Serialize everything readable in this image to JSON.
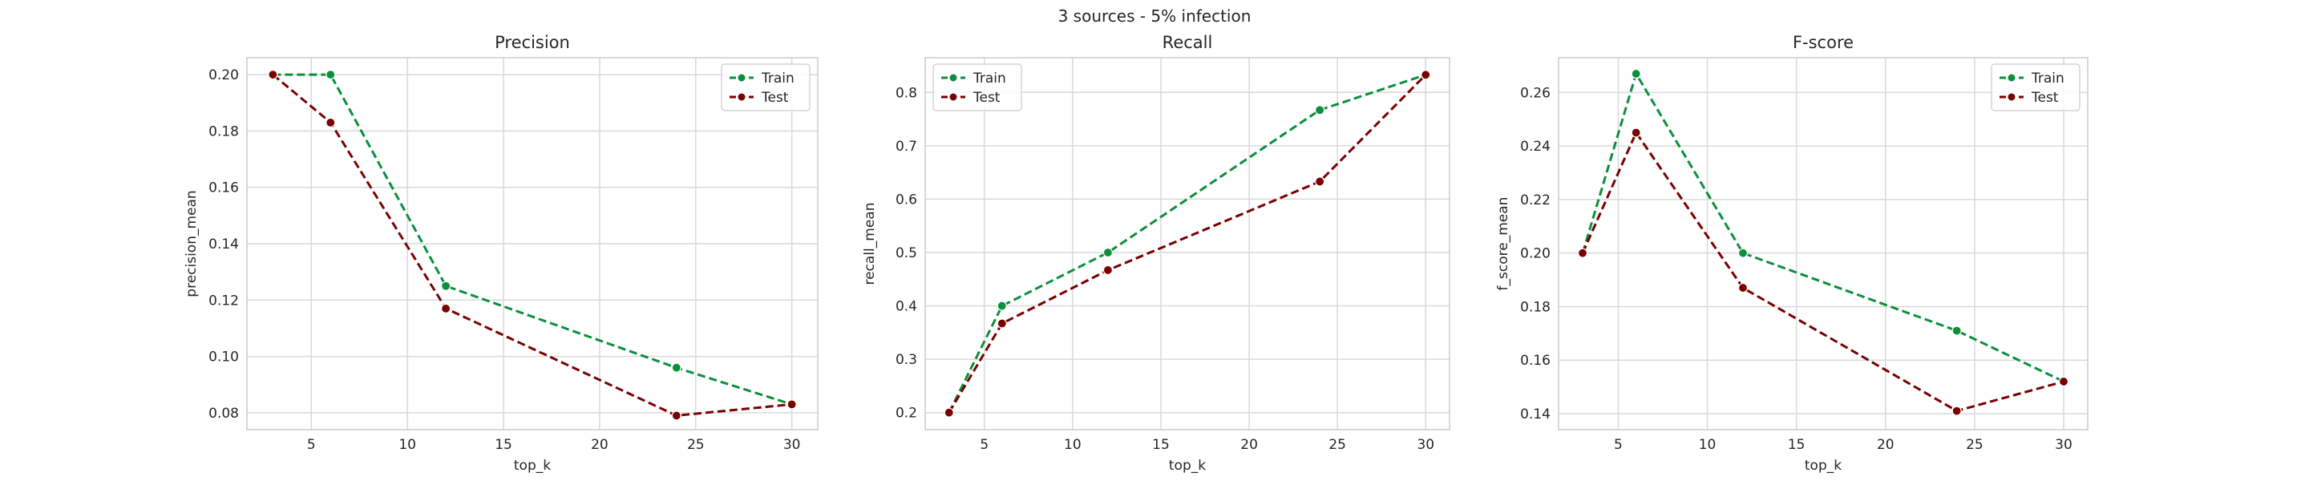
{
  "suptitle": "3 sources - 5% infection",
  "colors": {
    "train": "#0a8f3c",
    "test": "#7a0000",
    "grid": "#d9d9d9",
    "frame": "#cccccc"
  },
  "chart_data": [
    {
      "type": "line",
      "title": "Precision",
      "xlabel": "top_k",
      "ylabel": "precision_mean",
      "xlim": [
        1.65,
        31.35
      ],
      "ylim": [
        0.074,
        0.206
      ],
      "xticks": [
        5,
        10,
        15,
        20,
        25,
        30
      ],
      "yticks": [
        0.08,
        0.1,
        0.12,
        0.14,
        0.16,
        0.18,
        0.2
      ],
      "ytick_labels": [
        "0.08",
        "0.10",
        "0.12",
        "0.14",
        "0.16",
        "0.18",
        "0.20"
      ],
      "grid": true,
      "legend": "top-right",
      "x": [
        3,
        6,
        12,
        24,
        30
      ],
      "series": [
        {
          "name": "Train",
          "values": [
            0.2,
            0.2,
            0.125,
            0.096,
            0.083
          ]
        },
        {
          "name": "Test",
          "values": [
            0.2,
            0.183,
            0.117,
            0.079,
            0.083
          ]
        }
      ]
    },
    {
      "type": "line",
      "title": "Recall",
      "xlabel": "top_k",
      "ylabel": "recall_mean",
      "xlim": [
        1.65,
        31.35
      ],
      "ylim": [
        0.168,
        0.865
      ],
      "xticks": [
        5,
        10,
        15,
        20,
        25,
        30
      ],
      "yticks": [
        0.2,
        0.3,
        0.4,
        0.5,
        0.6,
        0.7,
        0.8
      ],
      "ytick_labels": [
        "0.2",
        "0.3",
        "0.4",
        "0.5",
        "0.6",
        "0.7",
        "0.8"
      ],
      "grid": true,
      "legend": "top-left",
      "x": [
        3,
        6,
        12,
        24,
        30
      ],
      "series": [
        {
          "name": "Train",
          "values": [
            0.2,
            0.4,
            0.5,
            0.767,
            0.833
          ]
        },
        {
          "name": "Test",
          "values": [
            0.2,
            0.367,
            0.467,
            0.633,
            0.833
          ]
        }
      ]
    },
    {
      "type": "line",
      "title": "F-score",
      "xlabel": "top_k",
      "ylabel": "f_score_mean",
      "xlim": [
        1.65,
        31.35
      ],
      "ylim": [
        0.134,
        0.273
      ],
      "xticks": [
        5,
        10,
        15,
        20,
        25,
        30
      ],
      "yticks": [
        0.14,
        0.16,
        0.18,
        0.2,
        0.22,
        0.24,
        0.26
      ],
      "ytick_labels": [
        "0.14",
        "0.16",
        "0.18",
        "0.20",
        "0.22",
        "0.24",
        "0.26"
      ],
      "grid": true,
      "legend": "top-right",
      "x": [
        3,
        6,
        12,
        24,
        30
      ],
      "series": [
        {
          "name": "Train",
          "values": [
            0.2,
            0.267,
            0.2,
            0.171,
            0.152
          ]
        },
        {
          "name": "Test",
          "values": [
            0.2,
            0.245,
            0.187,
            0.141,
            0.152
          ]
        }
      ]
    }
  ]
}
